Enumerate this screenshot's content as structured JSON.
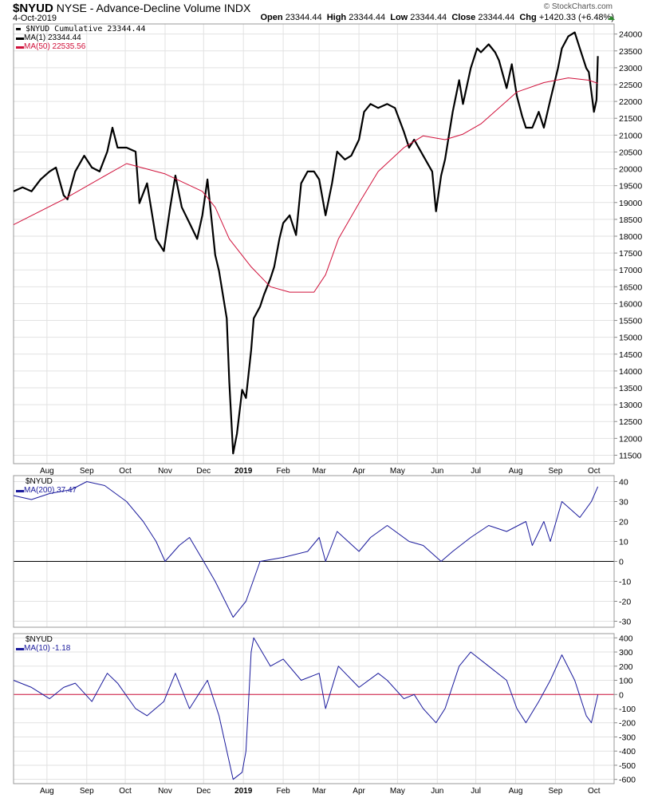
{
  "header": {
    "symbol": "$NYUD",
    "name": "NYSE - Advance-Decline Volume",
    "exchange": "INDX",
    "date": "4-Oct-2019",
    "open_label": "Open",
    "open": "23344.44",
    "high_label": "High",
    "high": "23344.44",
    "low_label": "Low",
    "low": "23344.44",
    "close_label": "Close",
    "close": "23344.44",
    "chg_label": "Chg",
    "chg": "+1420.33 (+6.48%)",
    "brand": "© StockCharts.com",
    "up_color": "#2e8b2e"
  },
  "chart_data": [
    {
      "type": "line",
      "panel": "main",
      "ylim": [
        11250,
        24300
      ],
      "yticks": [
        11500,
        12000,
        12500,
        13000,
        13500,
        14000,
        14500,
        15000,
        15500,
        16000,
        16500,
        17000,
        17500,
        18000,
        18500,
        19000,
        19500,
        20000,
        20500,
        21000,
        21500,
        22000,
        22500,
        23000,
        23500,
        24000
      ],
      "xlabels": [
        {
          "label": "Aug",
          "date": "2018-08-01"
        },
        {
          "label": "Sep",
          "date": "2018-09-01"
        },
        {
          "label": "Oct",
          "date": "2018-10-01"
        },
        {
          "label": "Nov",
          "date": "2018-11-01"
        },
        {
          "label": "Dec",
          "date": "2018-12-01"
        },
        {
          "label": "2019",
          "date": "2019-01-01"
        },
        {
          "label": "Feb",
          "date": "2019-02-01"
        },
        {
          "label": "Mar",
          "date": "2019-03-01"
        },
        {
          "label": "Apr",
          "date": "2019-04-01"
        },
        {
          "label": "May",
          "date": "2019-05-01"
        },
        {
          "label": "Jun",
          "date": "2019-06-01"
        },
        {
          "label": "Jul",
          "date": "2019-07-01"
        },
        {
          "label": "Aug",
          "date": "2019-08-01"
        },
        {
          "label": "Sep",
          "date": "2019-09-01"
        },
        {
          "label": "Oct",
          "date": "2019-10-01"
        }
      ],
      "grid": true,
      "legend": [
        "$NYUD Cumulative 23344.44",
        "MA(1) 23344.44",
        "MA(50) 22535.56"
      ],
      "series": [
        {
          "name": "$NYUD Cumulative",
          "color": "#000000",
          "points": [
            [
              "2018-07-06",
              19330
            ],
            [
              "2018-07-13",
              19450
            ],
            [
              "2018-07-20",
              19330
            ],
            [
              "2018-07-27",
              19685
            ],
            [
              "2018-08-03",
              19920
            ],
            [
              "2018-08-08",
              20040
            ],
            [
              "2018-08-14",
              19215
            ],
            [
              "2018-08-17",
              19095
            ],
            [
              "2018-08-23",
              19920
            ],
            [
              "2018-08-30",
              20390
            ],
            [
              "2018-09-05",
              20040
            ],
            [
              "2018-09-11",
              19920
            ],
            [
              "2018-09-17",
              20510
            ],
            [
              "2018-09-21",
              21220
            ],
            [
              "2018-09-25",
              20630
            ],
            [
              "2018-10-02",
              20630
            ],
            [
              "2018-10-09",
              20510
            ],
            [
              "2018-10-12",
              18980
            ],
            [
              "2018-10-18",
              19570
            ],
            [
              "2018-10-25",
              17920
            ],
            [
              "2018-10-31",
              17560
            ],
            [
              "2018-11-05",
              18860
            ],
            [
              "2018-11-09",
              19800
            ],
            [
              "2018-11-14",
              18860
            ],
            [
              "2018-11-20",
              18390
            ],
            [
              "2018-11-26",
              17920
            ],
            [
              "2018-11-30",
              18620
            ],
            [
              "2018-12-04",
              19685
            ],
            [
              "2018-12-10",
              17445
            ],
            [
              "2018-12-13",
              16970
            ],
            [
              "2018-12-19",
              15560
            ],
            [
              "2018-12-21",
              13670
            ],
            [
              "2018-12-24",
              11550
            ],
            [
              "2018-12-27",
              12140
            ],
            [
              "2018-12-31",
              13440
            ],
            [
              "2019-01-03",
              13200
            ],
            [
              "2019-01-07",
              14615
            ],
            [
              "2019-01-09",
              15560
            ],
            [
              "2019-01-14",
              15910
            ],
            [
              "2019-01-17",
              16265
            ],
            [
              "2019-01-22",
              16740
            ],
            [
              "2019-01-25",
              17090
            ],
            [
              "2019-01-29",
              17920
            ],
            [
              "2019-02-01",
              18390
            ],
            [
              "2019-02-06",
              18620
            ],
            [
              "2019-02-11",
              18035
            ],
            [
              "2019-02-15",
              19570
            ],
            [
              "2019-02-20",
              19920
            ],
            [
              "2019-02-25",
              19920
            ],
            [
              "2019-03-01",
              19685
            ],
            [
              "2019-03-06",
              18620
            ],
            [
              "2019-03-11",
              19570
            ],
            [
              "2019-03-15",
              20510
            ],
            [
              "2019-03-21",
              20275
            ],
            [
              "2019-03-26",
              20390
            ],
            [
              "2019-04-01",
              20865
            ],
            [
              "2019-04-05",
              21690
            ],
            [
              "2019-04-10",
              21925
            ],
            [
              "2019-04-16",
              21805
            ],
            [
              "2019-04-23",
              21925
            ],
            [
              "2019-04-29",
              21805
            ],
            [
              "2019-05-06",
              21100
            ],
            [
              "2019-05-10",
              20630
            ],
            [
              "2019-05-14",
              20865
            ],
            [
              "2019-05-21",
              20390
            ],
            [
              "2019-05-28",
              19920
            ],
            [
              "2019-05-31",
              18740
            ],
            [
              "2019-06-04",
              19800
            ],
            [
              "2019-06-07",
              20275
            ],
            [
              "2019-06-13",
              21690
            ],
            [
              "2019-06-18",
              22630
            ],
            [
              "2019-06-21",
              21925
            ],
            [
              "2019-06-27",
              22985
            ],
            [
              "2019-07-02",
              23575
            ],
            [
              "2019-07-05",
              23460
            ],
            [
              "2019-07-11",
              23695
            ],
            [
              "2019-07-16",
              23460
            ],
            [
              "2019-07-19",
              23220
            ],
            [
              "2019-07-25",
              22395
            ],
            [
              "2019-07-29",
              23105
            ],
            [
              "2019-08-02",
              22160
            ],
            [
              "2019-08-06",
              21570
            ],
            [
              "2019-08-09",
              21220
            ],
            [
              "2019-08-14",
              21220
            ],
            [
              "2019-08-19",
              21690
            ],
            [
              "2019-08-23",
              21220
            ],
            [
              "2019-08-28",
              22045
            ],
            [
              "2019-09-03",
              22985
            ],
            [
              "2019-09-06",
              23575
            ],
            [
              "2019-09-11",
              23930
            ],
            [
              "2019-09-16",
              24050
            ],
            [
              "2019-09-20",
              23575
            ],
            [
              "2019-09-25",
              22985
            ],
            [
              "2019-09-27",
              22870
            ],
            [
              "2019-10-01",
              21690
            ],
            [
              "2019-10-03",
              22045
            ],
            [
              "2019-10-04",
              23344.44
            ]
          ]
        },
        {
          "name": "MA(50)",
          "color": "#d0103a",
          "points": [
            [
              "2018-07-06",
              18340
            ],
            [
              "2018-08-14",
              19095
            ],
            [
              "2018-09-21",
              19920
            ],
            [
              "2018-10-02",
              20155
            ],
            [
              "2018-11-01",
              19850
            ],
            [
              "2018-11-30",
              19330
            ],
            [
              "2018-12-10",
              18860
            ],
            [
              "2018-12-21",
              17920
            ],
            [
              "2019-01-07",
              17090
            ],
            [
              "2019-01-22",
              16500
            ],
            [
              "2019-02-06",
              16340
            ],
            [
              "2019-02-25",
              16340
            ],
            [
              "2019-03-06",
              16855
            ],
            [
              "2019-03-16",
              17920
            ],
            [
              "2019-04-01",
              18980
            ],
            [
              "2019-04-16",
              19920
            ],
            [
              "2019-05-06",
              20630
            ],
            [
              "2019-05-21",
              20980
            ],
            [
              "2019-06-07",
              20865
            ],
            [
              "2019-06-21",
              21030
            ],
            [
              "2019-07-05",
              21335
            ],
            [
              "2019-07-19",
              21805
            ],
            [
              "2019-08-02",
              22280
            ],
            [
              "2019-08-23",
              22560
            ],
            [
              "2019-09-11",
              22700
            ],
            [
              "2019-09-27",
              22630
            ],
            [
              "2019-10-04",
              22535.56
            ]
          ]
        }
      ]
    },
    {
      "type": "line",
      "panel": "ma200",
      "ylim": [
        -33,
        43
      ],
      "yticks": [
        -30,
        -20,
        -10,
        0,
        10,
        20,
        30,
        40
      ],
      "zero_line": true,
      "legend": [
        "$NYUD",
        "MA(200) 37.47"
      ],
      "series": [
        {
          "name": "MA(200)",
          "color": "#1a1a9c",
          "points": [
            [
              "2018-07-06",
              33
            ],
            [
              "2018-07-20",
              31
            ],
            [
              "2018-08-03",
              34
            ],
            [
              "2018-08-20",
              36
            ],
            [
              "2018-09-01",
              40
            ],
            [
              "2018-09-15",
              38
            ],
            [
              "2018-10-02",
              30
            ],
            [
              "2018-10-15",
              20
            ],
            [
              "2018-10-25",
              10
            ],
            [
              "2018-11-01",
              0
            ],
            [
              "2018-11-12",
              8
            ],
            [
              "2018-11-20",
              12
            ],
            [
              "2018-12-01",
              0
            ],
            [
              "2018-12-10",
              -10
            ],
            [
              "2018-12-24",
              -28
            ],
            [
              "2019-01-03",
              -20
            ],
            [
              "2019-01-14",
              0
            ],
            [
              "2019-02-01",
              2
            ],
            [
              "2019-02-20",
              5
            ],
            [
              "2019-03-01",
              12
            ],
            [
              "2019-03-06",
              0
            ],
            [
              "2019-03-15",
              15
            ],
            [
              "2019-04-01",
              5
            ],
            [
              "2019-04-10",
              12
            ],
            [
              "2019-04-23",
              18
            ],
            [
              "2019-05-10",
              10
            ],
            [
              "2019-05-21",
              8
            ],
            [
              "2019-06-04",
              0
            ],
            [
              "2019-06-13",
              5
            ],
            [
              "2019-06-27",
              12
            ],
            [
              "2019-07-11",
              18
            ],
            [
              "2019-07-25",
              15
            ],
            [
              "2019-08-09",
              20
            ],
            [
              "2019-08-14",
              8
            ],
            [
              "2019-08-23",
              20
            ],
            [
              "2019-08-28",
              10
            ],
            [
              "2019-09-06",
              30
            ],
            [
              "2019-09-20",
              22
            ],
            [
              "2019-09-29",
              30
            ],
            [
              "2019-10-04",
              37.47
            ]
          ]
        }
      ]
    },
    {
      "type": "line",
      "panel": "ma10",
      "ylim": [
        -630,
        430
      ],
      "yticks": [
        -600,
        -500,
        -400,
        -300,
        -200,
        -100,
        0,
        100,
        200,
        300,
        400
      ],
      "zero_line": true,
      "legend": [
        "$NYUD",
        "MA(10) -1.18"
      ],
      "series": [
        {
          "name": "MA(10)",
          "color": "#1a1a9c",
          "points": [
            [
              "2018-07-06",
              100
            ],
            [
              "2018-07-20",
              50
            ],
            [
              "2018-08-03",
              -30
            ],
            [
              "2018-08-14",
              50
            ],
            [
              "2018-08-23",
              80
            ],
            [
              "2018-09-05",
              -50
            ],
            [
              "2018-09-17",
              150
            ],
            [
              "2018-09-25",
              80
            ],
            [
              "2018-10-09",
              -100
            ],
            [
              "2018-10-18",
              -150
            ],
            [
              "2018-10-31",
              -50
            ],
            [
              "2018-11-09",
              150
            ],
            [
              "2018-11-20",
              -100
            ],
            [
              "2018-12-04",
              100
            ],
            [
              "2018-12-13",
              -150
            ],
            [
              "2018-12-24",
              -600
            ],
            [
              "2018-12-31",
              -550
            ],
            [
              "2019-01-03",
              -400
            ],
            [
              "2019-01-07",
              300
            ],
            [
              "2019-01-09",
              400
            ],
            [
              "2019-01-22",
              200
            ],
            [
              "2019-02-01",
              250
            ],
            [
              "2019-02-15",
              100
            ],
            [
              "2019-03-01",
              150
            ],
            [
              "2019-03-06",
              -100
            ],
            [
              "2019-03-16",
              200
            ],
            [
              "2019-04-01",
              50
            ],
            [
              "2019-04-16",
              150
            ],
            [
              "2019-04-23",
              100
            ],
            [
              "2019-05-06",
              -30
            ],
            [
              "2019-05-14",
              0
            ],
            [
              "2019-05-21",
              -100
            ],
            [
              "2019-05-31",
              -200
            ],
            [
              "2019-06-07",
              -100
            ],
            [
              "2019-06-18",
              200
            ],
            [
              "2019-06-27",
              300
            ],
            [
              "2019-07-11",
              200
            ],
            [
              "2019-07-25",
              100
            ],
            [
              "2019-08-02",
              -100
            ],
            [
              "2019-08-09",
              -200
            ],
            [
              "2019-08-19",
              -50
            ],
            [
              "2019-08-28",
              100
            ],
            [
              "2019-09-06",
              280
            ],
            [
              "2019-09-16",
              100
            ],
            [
              "2019-09-25",
              -150
            ],
            [
              "2019-09-29",
              -200
            ],
            [
              "2019-10-04",
              -1.18
            ]
          ]
        }
      ]
    }
  ]
}
